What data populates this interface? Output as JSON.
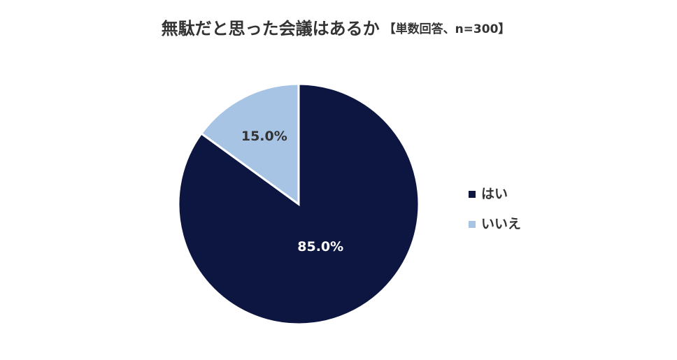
{
  "chart_data": {
    "type": "pie",
    "title": "無駄だと思った会議はあるか",
    "subtitle": "【単数回答、n=300】",
    "categories": [
      "はい",
      "いいえ"
    ],
    "values": [
      85,
      15
    ],
    "value_labels": [
      "85.0%",
      "15.0%"
    ],
    "colors": [
      "#0c1640",
      "#a7c4e4"
    ],
    "label_colors": [
      "#ffffff",
      "#333333"
    ],
    "legend": "right"
  }
}
